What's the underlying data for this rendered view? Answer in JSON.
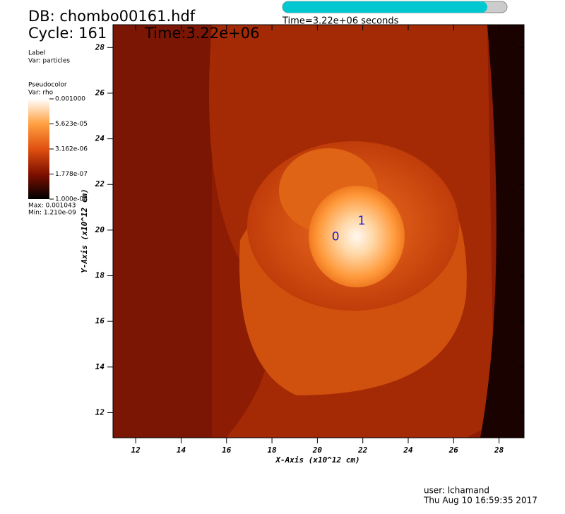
{
  "chart_data": {
    "type": "image",
    "header": {
      "db": "DB: chombo00161.hdf",
      "cycle": "Cycle: 161",
      "time": "Time:3.22e+06"
    },
    "slider_label": "Time=3.22e+06 seconds",
    "label_legend": {
      "title": "Label",
      "var": "Var: particles"
    },
    "pseudocolor_legend": {
      "title": "Pseudocolor",
      "var": "Var: rho",
      "labels": [
        "0.001000",
        "5.623e-05",
        "3.162e-06",
        "1.778e-07",
        "1.000e-08"
      ],
      "max": "Max: 0.001043",
      "min": "Min: 1.210e-09"
    },
    "x_label": "X-Axis (x10^12 cm)",
    "y_label": "Y-Axis (x10^12 cm)",
    "xlim": [
      11,
      29.1
    ],
    "ylim": [
      10.9,
      29.0
    ],
    "xticks": [
      12,
      14,
      16,
      18,
      20,
      22,
      24,
      26,
      28
    ],
    "yticks": [
      12,
      14,
      16,
      18,
      20,
      22,
      24,
      26,
      28
    ],
    "particles": [
      {
        "label": "0",
        "x": 20.8,
        "y": 19.7
      },
      {
        "label": "1",
        "x": 21.95,
        "y": 20.4
      }
    ],
    "footer": {
      "user": "user: lchamand",
      "date": "Thu Aug 10 16:59:35 2017"
    }
  }
}
